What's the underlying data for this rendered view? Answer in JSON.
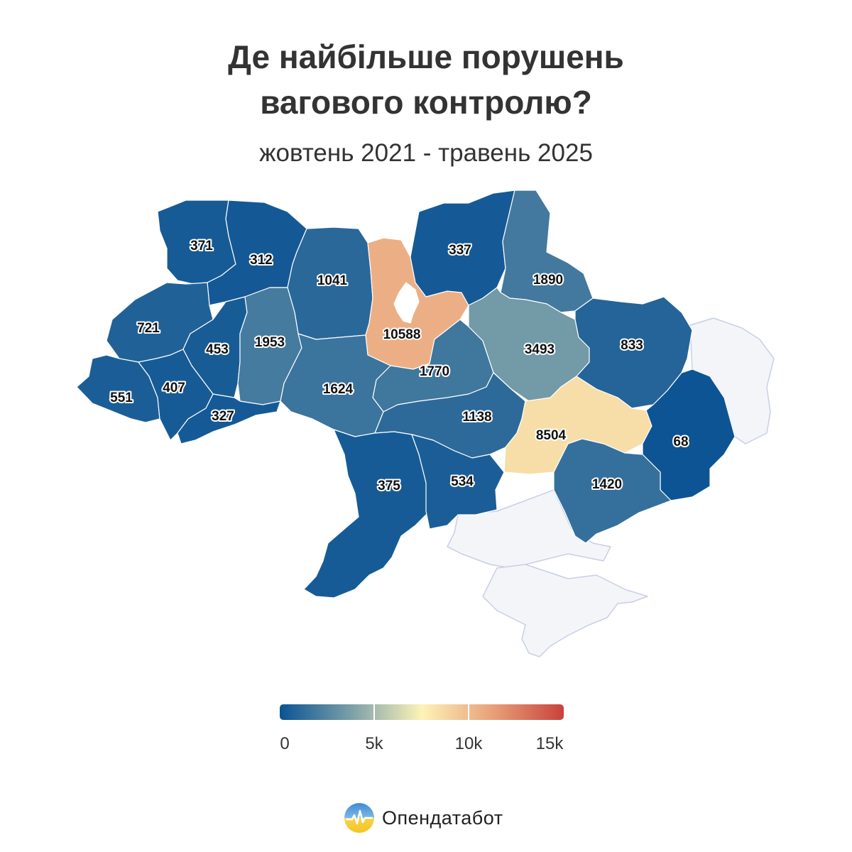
{
  "header": {
    "title_line1": "Де найбільше порушень",
    "title_line2": "вагового контролю?",
    "subtitle": "жовтень 2021 - травень 2025"
  },
  "colors": {
    "occupied": "#f4f5f9",
    "kyiv_city": "#ffffff",
    "scale": [
      "#0b5394",
      "#7a9fa8",
      "#fdf3b8",
      "#e8a07a",
      "#c8423c"
    ]
  },
  "scale_domain": [
    0,
    15000
  ],
  "regions": [
    {
      "id": "volyn",
      "label": "371",
      "value": 371
    },
    {
      "id": "rivne",
      "label": "312",
      "value": 312
    },
    {
      "id": "zhytomyr",
      "label": "1041",
      "value": 1041
    },
    {
      "id": "kyiv-oblast",
      "label": "10588",
      "value": 10588
    },
    {
      "id": "chernihiv",
      "label": "337",
      "value": 337
    },
    {
      "id": "sumy",
      "label": "1890",
      "value": 1890
    },
    {
      "id": "lviv",
      "label": "721",
      "value": 721
    },
    {
      "id": "ternopil",
      "label": "453",
      "value": 453
    },
    {
      "id": "khmelnytskyi",
      "label": "1953",
      "value": 1953
    },
    {
      "id": "cherkasy",
      "label": "1770",
      "value": 1770
    },
    {
      "id": "poltava",
      "label": "3493",
      "value": 3493
    },
    {
      "id": "kharkiv",
      "label": "833",
      "value": 833
    },
    {
      "id": "zakarpattia",
      "label": "551",
      "value": 551
    },
    {
      "id": "ivano-frankivsk",
      "label": "407",
      "value": 407
    },
    {
      "id": "chernivtsi",
      "label": "327",
      "value": 327
    },
    {
      "id": "vinnytsia",
      "label": "1624",
      "value": 1624
    },
    {
      "id": "kirovohrad",
      "label": "1138",
      "value": 1138
    },
    {
      "id": "dnipropetrovsk",
      "label": "8504",
      "value": 8504
    },
    {
      "id": "donetsk",
      "label": "68",
      "value": 68
    },
    {
      "id": "odesa",
      "label": "375",
      "value": 375
    },
    {
      "id": "mykolaiv",
      "label": "534",
      "value": 534
    },
    {
      "id": "zaporizhzhia",
      "label": "1420",
      "value": 1420
    }
  ],
  "legend": {
    "ticks": [
      "0",
      "5k",
      "10k",
      "15k"
    ],
    "values": [
      0,
      5000,
      10000,
      15000
    ]
  },
  "brand": {
    "name": "Опендатабот"
  }
}
